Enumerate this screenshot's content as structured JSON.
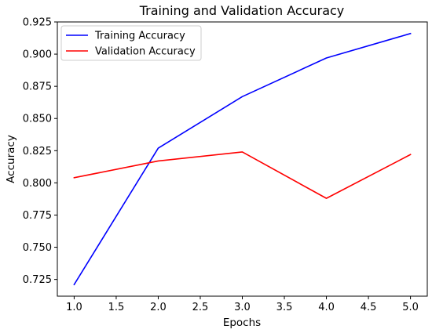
{
  "chart_data": {
    "type": "line",
    "title": "Training and Validation Accuracy",
    "xlabel": "Epochs",
    "ylabel": "Accuracy",
    "x": [
      1.0,
      2.0,
      3.0,
      4.0,
      5.0
    ],
    "xlim": [
      0.8,
      5.2
    ],
    "ylim": [
      0.712,
      0.925
    ],
    "xticks": [
      1.0,
      1.5,
      2.0,
      2.5,
      3.0,
      3.5,
      4.0,
      4.5,
      5.0
    ],
    "xtick_labels": [
      "1.0",
      "1.5",
      "2.0",
      "2.5",
      "3.0",
      "3.5",
      "4.0",
      "4.5",
      "5.0"
    ],
    "yticks": [
      0.725,
      0.75,
      0.775,
      0.8,
      0.825,
      0.85,
      0.875,
      0.9,
      0.925
    ],
    "ytick_labels": [
      "0.725",
      "0.750",
      "0.775",
      "0.800",
      "0.825",
      "0.850",
      "0.875",
      "0.900",
      "0.925"
    ],
    "grid": false,
    "legend_position": "top-left",
    "series": [
      {
        "name": "Training Accuracy",
        "color": "#0000ff",
        "values": [
          0.721,
          0.827,
          0.867,
          0.897,
          0.916
        ]
      },
      {
        "name": "Validation Accuracy",
        "color": "#ff0000",
        "values": [
          0.804,
          0.817,
          0.824,
          0.788,
          0.822
        ]
      }
    ]
  }
}
